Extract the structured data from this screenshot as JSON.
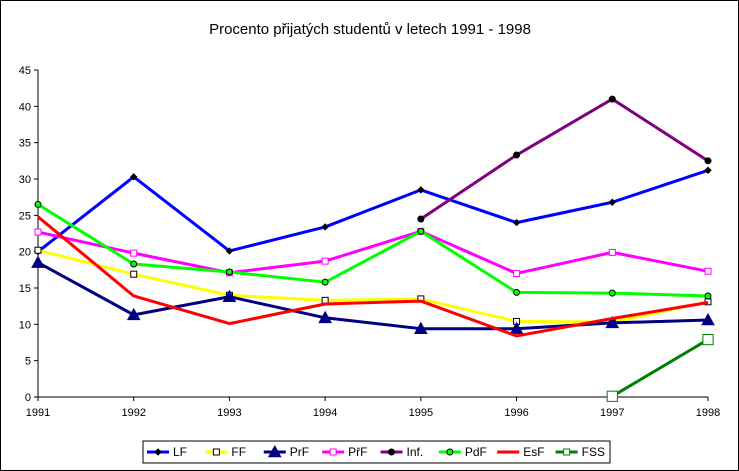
{
  "chart_data": {
    "type": "line",
    "title": "Procento přijatých studentů v letech 1991 - 1998",
    "xlabel": "",
    "ylabel": "",
    "categories": [
      "1991",
      "1992",
      "1993",
      "1994",
      "1995",
      "1996",
      "1997",
      "1998"
    ],
    "ylim": [
      0,
      45
    ],
    "yticks": [
      "0",
      "5",
      "10",
      "15",
      "20",
      "25",
      "30",
      "35",
      "40",
      "45"
    ],
    "grid": false,
    "legend_position": "bottom",
    "series": [
      {
        "name": "LF",
        "color": "#0000ff",
        "marker": "diamond",
        "values": [
          20.0,
          30.3,
          20.1,
          23.4,
          28.5,
          24.0,
          26.8,
          31.2
        ]
      },
      {
        "name": "FF",
        "color": "#ffff00",
        "marker": "square",
        "values": [
          20.2,
          16.9,
          14.0,
          13.3,
          13.5,
          10.4,
          10.3,
          13.1
        ]
      },
      {
        "name": "PrF",
        "color": "#000080",
        "marker": "triangle",
        "values": [
          18.5,
          11.3,
          13.8,
          10.9,
          9.4,
          9.4,
          10.2,
          10.6
        ]
      },
      {
        "name": "PřF",
        "color": "#ff00ff",
        "marker": "square",
        "values": [
          22.7,
          19.8,
          17.1,
          18.7,
          22.8,
          17.0,
          19.9,
          17.3
        ]
      },
      {
        "name": "Inf.",
        "color": "#800080",
        "marker": "circle",
        "values": [
          null,
          null,
          null,
          null,
          24.5,
          33.3,
          41.0,
          32.5
        ]
      },
      {
        "name": "PdF",
        "color": "#00ff00",
        "marker": "circle",
        "values": [
          26.5,
          18.3,
          17.2,
          15.8,
          22.8,
          14.4,
          14.3,
          13.9
        ]
      },
      {
        "name": "EsF",
        "color": "#ff0000",
        "marker": "none",
        "values": [
          24.8,
          13.9,
          10.1,
          12.8,
          13.2,
          8.4,
          10.8,
          13.0
        ]
      },
      {
        "name": "FSS",
        "color": "#008000",
        "marker": "square",
        "values": [
          null,
          null,
          null,
          null,
          null,
          null,
          0.1,
          7.9
        ]
      }
    ]
  }
}
